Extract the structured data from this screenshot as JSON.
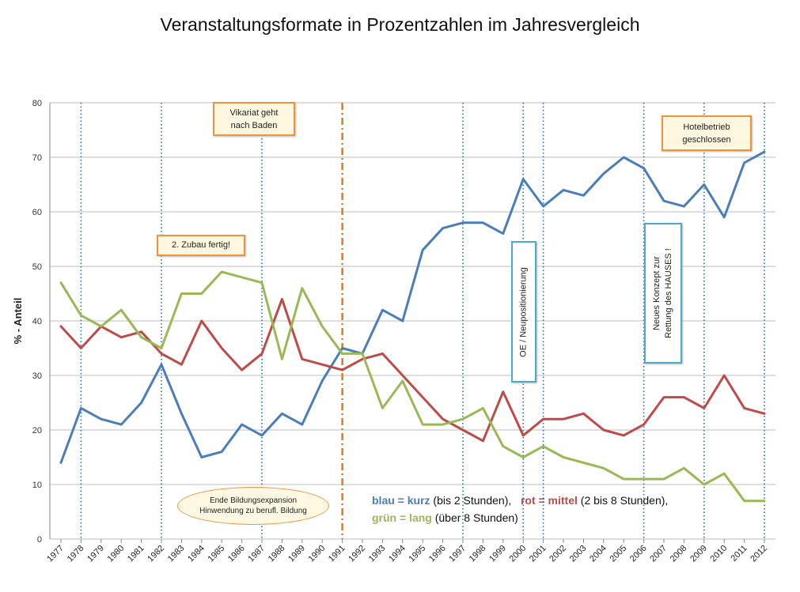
{
  "chart_data": {
    "type": "line",
    "title": "Veranstaltungsformate in Prozentzahlen im Jahresvergleich",
    "ylabel": "% - Anteil",
    "xlabel": "",
    "ylim": [
      0,
      80
    ],
    "yticks": [
      0,
      10,
      20,
      30,
      40,
      50,
      60,
      70,
      80
    ],
    "grid": true,
    "x": [
      "1977",
      "1978",
      "1979",
      "1980",
      "1981",
      "1982",
      "1983",
      "1984",
      "1985",
      "1986",
      "1987",
      "1988",
      "1989",
      "1990",
      "1991",
      "1992",
      "1993",
      "1994",
      "1995",
      "1996",
      "1997",
      "1998",
      "1999",
      "2000",
      "2001",
      "2002",
      "2003",
      "2004",
      "2005",
      "2006",
      "2007",
      "2008",
      "2009",
      "2010",
      "2011",
      "2012"
    ],
    "series": [
      {
        "key": "blau",
        "color": "#4a7ebb",
        "values": [
          14,
          24,
          22,
          21,
          25,
          32,
          23,
          15,
          16,
          21,
          19,
          23,
          21,
          29,
          35,
          34,
          42,
          40,
          53,
          57,
          58,
          58,
          56,
          66,
          61,
          64,
          63,
          67,
          70,
          68,
          62,
          61,
          65,
          59,
          69,
          71
        ]
      },
      {
        "key": "rot",
        "color": "#be4b48",
        "values": [
          39,
          35,
          39,
          37,
          38,
          34,
          32,
          40,
          35,
          31,
          34,
          44,
          33,
          32,
          31,
          33,
          34,
          30,
          26,
          22,
          20,
          18,
          27,
          19,
          22,
          22,
          23,
          20,
          19,
          21,
          26,
          26,
          24,
          30,
          24,
          23
        ]
      },
      {
        "key": "gruen",
        "color": "#98b954",
        "values": [
          47,
          41,
          39,
          42,
          37,
          35,
          45,
          45,
          49,
          48,
          47,
          33,
          46,
          39,
          34,
          34,
          24,
          29,
          21,
          21,
          22,
          24,
          17,
          15,
          17,
          15,
          14,
          13,
          11,
          11,
          11,
          13,
          10,
          12,
          7,
          7
        ]
      }
    ],
    "marker_years": [
      "1978",
      "1982",
      "1987",
      "1997",
      "2000",
      "2001",
      "2006",
      "2009",
      "2012"
    ],
    "marker_color": "#1f6fc2",
    "divider_year": "1991",
    "divider_color": "#e07b20",
    "annotations": {
      "vikariat": [
        "Vikariat geht",
        "nach Baden"
      ],
      "zubau": "2. Zubau fertig!",
      "hotel": [
        "Hotelbetrieb",
        "geschlossen"
      ],
      "oe": "OE / Neupositionierung",
      "konzept": [
        "Neues Konzept zur",
        "Rettung des HAUSES !"
      ],
      "ende": [
        "Ende Bildungsexpansion",
        "Hinwendung zu berufl. Bildung"
      ]
    },
    "legend": {
      "blau": "blau = kurz",
      "blau_desc": " (bis 2 Stunden),",
      "rot": "rot = mittel",
      "rot_desc": " (2 bis 8 Stunden),",
      "gruen": "grün = lang",
      "gruen_desc": " (über 8 Stunden)"
    }
  }
}
